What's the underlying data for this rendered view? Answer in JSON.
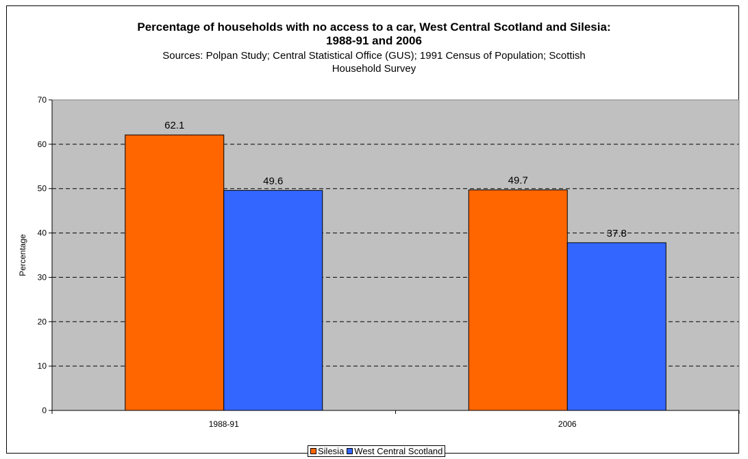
{
  "chart_data": {
    "type": "bar",
    "title_line1": "Percentage of households with no access to a car, West Central Scotland and Silesia:",
    "title_line2": "1988-91 and 2006",
    "subtitle": "Sources: Polpan Study; Central Statistical Office (GUS); 1991 Census of Population; Scottish Household Survey",
    "xlabel": "",
    "ylabel": "Percentage",
    "ylim": [
      0,
      70
    ],
    "yticks": [
      0,
      10,
      20,
      30,
      40,
      50,
      60,
      70
    ],
    "categories": [
      "1988-91",
      "2006"
    ],
    "series": [
      {
        "name": "Silesia",
        "values": [
          62.1,
          49.7
        ],
        "value_labels": [
          "62.1",
          "49.7"
        ],
        "color": "#FF6600"
      },
      {
        "name": "West Central Scotland",
        "values": [
          49.6,
          37.8
        ],
        "value_labels": [
          "49.6",
          "37.8"
        ],
        "color": "#3366FF"
      }
    ],
    "plot_background": "#C0C0C0",
    "grid": "dashed horizontal",
    "legend_position": "bottom-center"
  }
}
